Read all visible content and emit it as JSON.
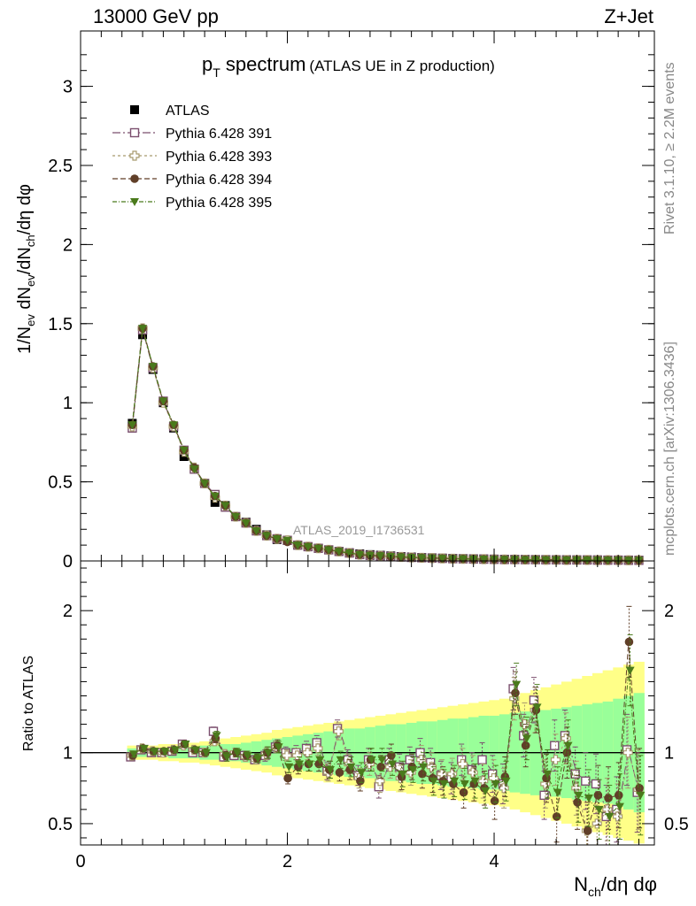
{
  "header": {
    "left": "13000 GeV pp",
    "right": "Z+Jet"
  },
  "side_labels": {
    "rivet": "Rivet 3.1.10, ≥ 2.2M events",
    "mcplots": "mcplots.cern.ch [arXiv:1306.3436]"
  },
  "chart_data": [
    {
      "type": "scatter",
      "panel": "main",
      "title_main": "p",
      "title_sub": "T",
      "title_rest": " spectrum",
      "title_note": "(ATLAS UE in Z production)",
      "watermark": "ATLAS_2019_I1736531",
      "ylabel": "1/N_{ev} dN_{ev}/dN_{ch}/dη dφ",
      "xlim": [
        0,
        5.55
      ],
      "ylim": [
        0,
        3.35
      ],
      "yticks": [
        "0",
        "0.5",
        "1",
        "1.5",
        "2",
        "2.5",
        "3"
      ],
      "ytick_values": [
        0,
        0.5,
        1,
        1.5,
        2,
        2.5,
        3
      ],
      "legend_position": "top-left",
      "x": [
        0.5,
        0.6,
        0.7,
        0.8,
        0.9,
        1.0,
        1.1,
        1.2,
        1.3,
        1.4,
        1.5,
        1.6,
        1.7,
        1.8,
        1.9,
        2.0,
        2.1,
        2.2,
        2.3,
        2.4,
        2.5,
        2.6,
        2.7,
        2.8,
        2.9,
        3.0,
        3.1,
        3.2,
        3.3,
        3.4,
        3.5,
        3.6,
        3.7,
        3.8,
        3.9,
        4.0,
        4.1,
        4.2,
        4.3,
        4.4,
        4.5,
        4.6,
        4.7,
        4.8,
        4.9,
        5.0,
        5.1,
        5.2,
        5.3,
        5.4
      ],
      "series": [
        {
          "name": "ATLAS",
          "color": "#000000",
          "marker": "filled-square",
          "values": [
            0.87,
            1.43,
            1.21,
            1.0,
            0.84,
            0.66,
            0.58,
            0.49,
            0.37,
            0.35,
            0.28,
            0.245,
            0.2,
            0.165,
            0.135,
            0.13,
            0.1,
            0.09,
            0.08,
            0.07,
            0.06,
            0.052,
            0.045,
            0.04,
            0.036,
            0.032,
            0.028,
            0.025,
            0.022,
            0.02,
            0.018,
            0.016,
            0.015,
            0.014,
            0.013,
            0.012,
            0.011,
            0.01,
            0.01,
            0.009,
            0.009,
            0.008,
            0.008,
            0.007,
            0.007,
            0.007,
            0.006,
            0.006,
            0.006,
            0.005
          ]
        },
        {
          "name": "Pythia 6.428 391",
          "color": "#7b4f6e",
          "marker": "open-square",
          "dash": "9,3,2,3",
          "values": [
            0.84,
            1.46,
            1.22,
            1.01,
            0.85,
            0.7,
            0.58,
            0.49,
            0.42,
            0.34,
            0.28,
            0.24,
            0.19,
            0.16,
            0.14,
            0.13,
            0.1,
            0.09,
            0.08,
            0.07,
            0.06,
            0.05,
            0.04,
            0.035,
            0.032,
            0.028,
            0.025,
            0.022,
            0.02,
            0.018,
            0.016,
            0.014,
            0.013,
            0.012,
            0.011,
            0.01,
            0.009,
            0.009,
            0.008,
            0.008,
            0.007,
            0.007,
            0.006,
            0.006,
            0.006,
            0.005,
            0.005,
            0.005,
            0.004,
            0.004
          ]
        },
        {
          "name": "Pythia 6.428 393",
          "color": "#a89a6e",
          "marker": "open-cross",
          "dash": "3,3",
          "values": [
            0.85,
            1.47,
            1.22,
            1.0,
            0.85,
            0.69,
            0.59,
            0.49,
            0.4,
            0.35,
            0.28,
            0.24,
            0.19,
            0.16,
            0.14,
            0.13,
            0.1,
            0.09,
            0.08,
            0.07,
            0.06,
            0.05,
            0.04,
            0.035,
            0.032,
            0.028,
            0.025,
            0.022,
            0.02,
            0.018,
            0.016,
            0.014,
            0.013,
            0.012,
            0.011,
            0.01,
            0.009,
            0.009,
            0.008,
            0.008,
            0.007,
            0.007,
            0.006,
            0.006,
            0.006,
            0.005,
            0.005,
            0.005,
            0.004,
            0.004
          ]
        },
        {
          "name": "Pythia 6.428 394",
          "color": "#603f28",
          "marker": "filled-circle",
          "dash": "6,3",
          "values": [
            0.86,
            1.47,
            1.23,
            1.01,
            0.86,
            0.7,
            0.59,
            0.49,
            0.41,
            0.35,
            0.28,
            0.24,
            0.19,
            0.16,
            0.14,
            0.12,
            0.1,
            0.09,
            0.08,
            0.07,
            0.06,
            0.05,
            0.04,
            0.035,
            0.032,
            0.028,
            0.025,
            0.022,
            0.02,
            0.018,
            0.016,
            0.014,
            0.013,
            0.012,
            0.011,
            0.01,
            0.009,
            0.009,
            0.008,
            0.008,
            0.007,
            0.007,
            0.006,
            0.006,
            0.006,
            0.005,
            0.005,
            0.005,
            0.004,
            0.004
          ]
        },
        {
          "name": "Pythia 6.428 395",
          "color": "#4a7a1c",
          "marker": "filled-triangle-down",
          "dash": "5,2,1,2",
          "values": [
            0.86,
            1.47,
            1.23,
            1.01,
            0.86,
            0.7,
            0.58,
            0.49,
            0.41,
            0.35,
            0.28,
            0.24,
            0.19,
            0.16,
            0.14,
            0.13,
            0.1,
            0.09,
            0.08,
            0.07,
            0.06,
            0.05,
            0.04,
            0.035,
            0.032,
            0.028,
            0.025,
            0.022,
            0.02,
            0.018,
            0.016,
            0.014,
            0.013,
            0.012,
            0.011,
            0.01,
            0.009,
            0.009,
            0.008,
            0.008,
            0.007,
            0.007,
            0.006,
            0.006,
            0.006,
            0.005,
            0.005,
            0.005,
            0.004,
            0.004
          ]
        }
      ]
    },
    {
      "type": "scatter",
      "panel": "ratio",
      "ylabel": "Ratio to ATLAS",
      "xlabel": "N_{ch}/dη dφ",
      "xlim": [
        0,
        5.55
      ],
      "ylim": [
        0.35,
        2.35
      ],
      "xticks": [
        "0",
        "2",
        "4"
      ],
      "xtick_values": [
        0,
        2,
        4
      ],
      "yticks": [
        "0.5",
        "1",
        "2"
      ],
      "ytick_values": [
        0.5,
        1,
        2
      ],
      "reference_line": 1,
      "band_inner_color": "#99ff99",
      "band_outer_color": "#ffff88",
      "x": [
        0.5,
        0.6,
        0.7,
        0.8,
        0.9,
        1.0,
        1.1,
        1.2,
        1.3,
        1.4,
        1.5,
        1.6,
        1.7,
        1.8,
        1.9,
        2.0,
        2.1,
        2.2,
        2.3,
        2.4,
        2.5,
        2.6,
        2.7,
        2.8,
        2.9,
        3.0,
        3.1,
        3.2,
        3.3,
        3.4,
        3.5,
        3.6,
        3.7,
        3.8,
        3.9,
        4.0,
        4.1,
        4.2,
        4.3,
        4.4,
        4.5,
        4.6,
        4.7,
        4.8,
        4.9,
        5.0,
        5.1,
        5.2,
        5.3,
        5.4
      ],
      "band_inner": [
        0.03,
        0.03,
        0.03,
        0.03,
        0.04,
        0.04,
        0.04,
        0.05,
        0.05,
        0.06,
        0.06,
        0.07,
        0.08,
        0.09,
        0.1,
        0.11,
        0.12,
        0.13,
        0.14,
        0.15,
        0.16,
        0.17,
        0.17,
        0.18,
        0.19,
        0.2,
        0.2,
        0.21,
        0.22,
        0.22,
        0.23,
        0.24,
        0.24,
        0.25,
        0.26,
        0.26,
        0.27,
        0.28,
        0.29,
        0.3,
        0.3,
        0.31,
        0.32,
        0.33,
        0.34,
        0.35,
        0.36,
        0.38,
        0.4,
        0.42
      ],
      "band_outer": [
        0.05,
        0.05,
        0.05,
        0.06,
        0.06,
        0.07,
        0.07,
        0.08,
        0.09,
        0.1,
        0.11,
        0.12,
        0.13,
        0.14,
        0.16,
        0.17,
        0.18,
        0.19,
        0.2,
        0.21,
        0.22,
        0.23,
        0.24,
        0.25,
        0.26,
        0.27,
        0.28,
        0.29,
        0.3,
        0.31,
        0.32,
        0.33,
        0.34,
        0.35,
        0.36,
        0.37,
        0.38,
        0.4,
        0.42,
        0.44,
        0.46,
        0.48,
        0.5,
        0.52,
        0.54,
        0.56,
        0.58,
        0.6,
        0.62,
        0.64
      ],
      "series": [
        {
          "name": "Pythia 6.428 391",
          "color": "#7b4f6e",
          "marker": "open-square",
          "dash": "9,3,2,3",
          "values": [
            0.97,
            1.02,
            1.0,
            1.0,
            1.01,
            1.06,
            1.0,
            1.0,
            1.15,
            0.97,
            0.98,
            0.98,
            0.95,
            0.98,
            1.04,
            1.0,
            1.0,
            1.03,
            1.07,
            0.87,
            1.17,
            0.95,
            0.84,
            0.95,
            0.76,
            0.95,
            0.9,
            0.95,
            1.0,
            0.93,
            0.84,
            0.82,
            0.95,
            0.88,
            0.95,
            0.85,
            0.78,
            1.45,
            1.12,
            1.37,
            0.7,
            1.05,
            1.12,
            0.85,
            0.8,
            0.78,
            0.55,
            0.6,
            1.02,
            0.72
          ],
          "errors": [
            0.02,
            0.02,
            0.02,
            0.02,
            0.02,
            0.02,
            0.02,
            0.02,
            0.03,
            0.03,
            0.03,
            0.03,
            0.03,
            0.04,
            0.04,
            0.04,
            0.05,
            0.05,
            0.05,
            0.06,
            0.06,
            0.07,
            0.07,
            0.08,
            0.08,
            0.08,
            0.09,
            0.09,
            0.1,
            0.1,
            0.1,
            0.11,
            0.11,
            0.12,
            0.12,
            0.13,
            0.14,
            0.15,
            0.15,
            0.16,
            0.17,
            0.18,
            0.18,
            0.19,
            0.2,
            0.21,
            0.22,
            0.23,
            0.25,
            0.28
          ]
        },
        {
          "name": "Pythia 6.428 393",
          "color": "#a89a6e",
          "marker": "open-cross",
          "dash": "3,3",
          "values": [
            0.98,
            1.03,
            1.01,
            1.0,
            1.02,
            1.05,
            1.02,
            1.0,
            1.08,
            0.99,
            1.0,
            0.97,
            0.95,
            0.99,
            1.04,
            0.98,
            0.98,
            1.0,
            1.03,
            0.86,
            1.15,
            0.92,
            0.82,
            0.92,
            0.8,
            0.9,
            0.82,
            0.86,
            0.95,
            0.9,
            0.85,
            0.85,
            0.92,
            0.86,
            0.8,
            0.82,
            0.75,
            1.38,
            1.2,
            1.3,
            0.78,
            0.95,
            1.1,
            0.75,
            0.45,
            0.5,
            0.6,
            0.55,
            1.0,
            0.74
          ],
          "errors": [
            0.02,
            0.02,
            0.02,
            0.02,
            0.02,
            0.02,
            0.02,
            0.02,
            0.03,
            0.03,
            0.03,
            0.03,
            0.03,
            0.04,
            0.04,
            0.04,
            0.05,
            0.05,
            0.05,
            0.06,
            0.06,
            0.07,
            0.07,
            0.08,
            0.08,
            0.08,
            0.09,
            0.09,
            0.1,
            0.1,
            0.1,
            0.11,
            0.11,
            0.12,
            0.12,
            0.13,
            0.14,
            0.15,
            0.15,
            0.16,
            0.17,
            0.18,
            0.18,
            0.19,
            0.2,
            0.21,
            0.22,
            0.23,
            0.25,
            0.28
          ]
        },
        {
          "name": "Pythia 6.428 394",
          "color": "#603f28",
          "marker": "filled-circle",
          "dash": "6,3",
          "values": [
            0.98,
            1.03,
            1.01,
            1.01,
            1.02,
            1.06,
            1.02,
            1.0,
            1.1,
            0.98,
            1.0,
            0.98,
            0.96,
            1.0,
            1.05,
            0.82,
            0.9,
            0.92,
            0.92,
            0.88,
            0.86,
            0.88,
            0.8,
            0.95,
            0.9,
            0.98,
            0.83,
            0.9,
            0.85,
            0.82,
            0.8,
            0.78,
            0.72,
            0.78,
            0.75,
            0.66,
            0.83,
            1.42,
            1.05,
            1.3,
            0.82,
            0.55,
            1.0,
            0.65,
            0.45,
            0.7,
            0.68,
            0.7,
            1.78,
            0.75
          ],
          "errors": [
            0.02,
            0.02,
            0.02,
            0.02,
            0.02,
            0.02,
            0.02,
            0.02,
            0.03,
            0.03,
            0.03,
            0.03,
            0.03,
            0.04,
            0.04,
            0.04,
            0.05,
            0.05,
            0.05,
            0.06,
            0.06,
            0.07,
            0.07,
            0.08,
            0.08,
            0.08,
            0.09,
            0.09,
            0.1,
            0.1,
            0.1,
            0.11,
            0.11,
            0.12,
            0.12,
            0.13,
            0.14,
            0.15,
            0.15,
            0.16,
            0.17,
            0.18,
            0.18,
            0.19,
            0.2,
            0.21,
            0.22,
            0.23,
            0.25,
            0.28
          ]
        },
        {
          "name": "Pythia 6.428 395",
          "color": "#4a7a1c",
          "marker": "filled-triangle-down",
          "dash": "5,2,1,2",
          "values": [
            0.99,
            1.03,
            1.01,
            1.01,
            1.02,
            1.06,
            1.02,
            1.0,
            1.12,
            0.97,
            1.0,
            0.98,
            0.96,
            1.0,
            1.04,
            0.9,
            0.92,
            0.92,
            0.95,
            0.88,
            0.95,
            0.9,
            0.86,
            0.95,
            0.95,
            0.92,
            0.85,
            0.88,
            0.9,
            0.8,
            0.78,
            0.8,
            0.78,
            0.8,
            0.73,
            0.78,
            0.8,
            1.48,
            1.1,
            1.32,
            0.85,
            0.72,
            1.05,
            0.7,
            0.68,
            0.6,
            0.55,
            0.62,
            1.58,
            0.7
          ],
          "errors": [
            0.02,
            0.02,
            0.02,
            0.02,
            0.02,
            0.02,
            0.02,
            0.02,
            0.03,
            0.03,
            0.03,
            0.03,
            0.03,
            0.04,
            0.04,
            0.04,
            0.05,
            0.05,
            0.05,
            0.06,
            0.06,
            0.07,
            0.07,
            0.08,
            0.08,
            0.08,
            0.09,
            0.09,
            0.1,
            0.1,
            0.1,
            0.11,
            0.11,
            0.12,
            0.12,
            0.13,
            0.14,
            0.15,
            0.15,
            0.16,
            0.17,
            0.18,
            0.18,
            0.19,
            0.2,
            0.21,
            0.22,
            0.23,
            0.25,
            0.28
          ]
        }
      ]
    }
  ]
}
